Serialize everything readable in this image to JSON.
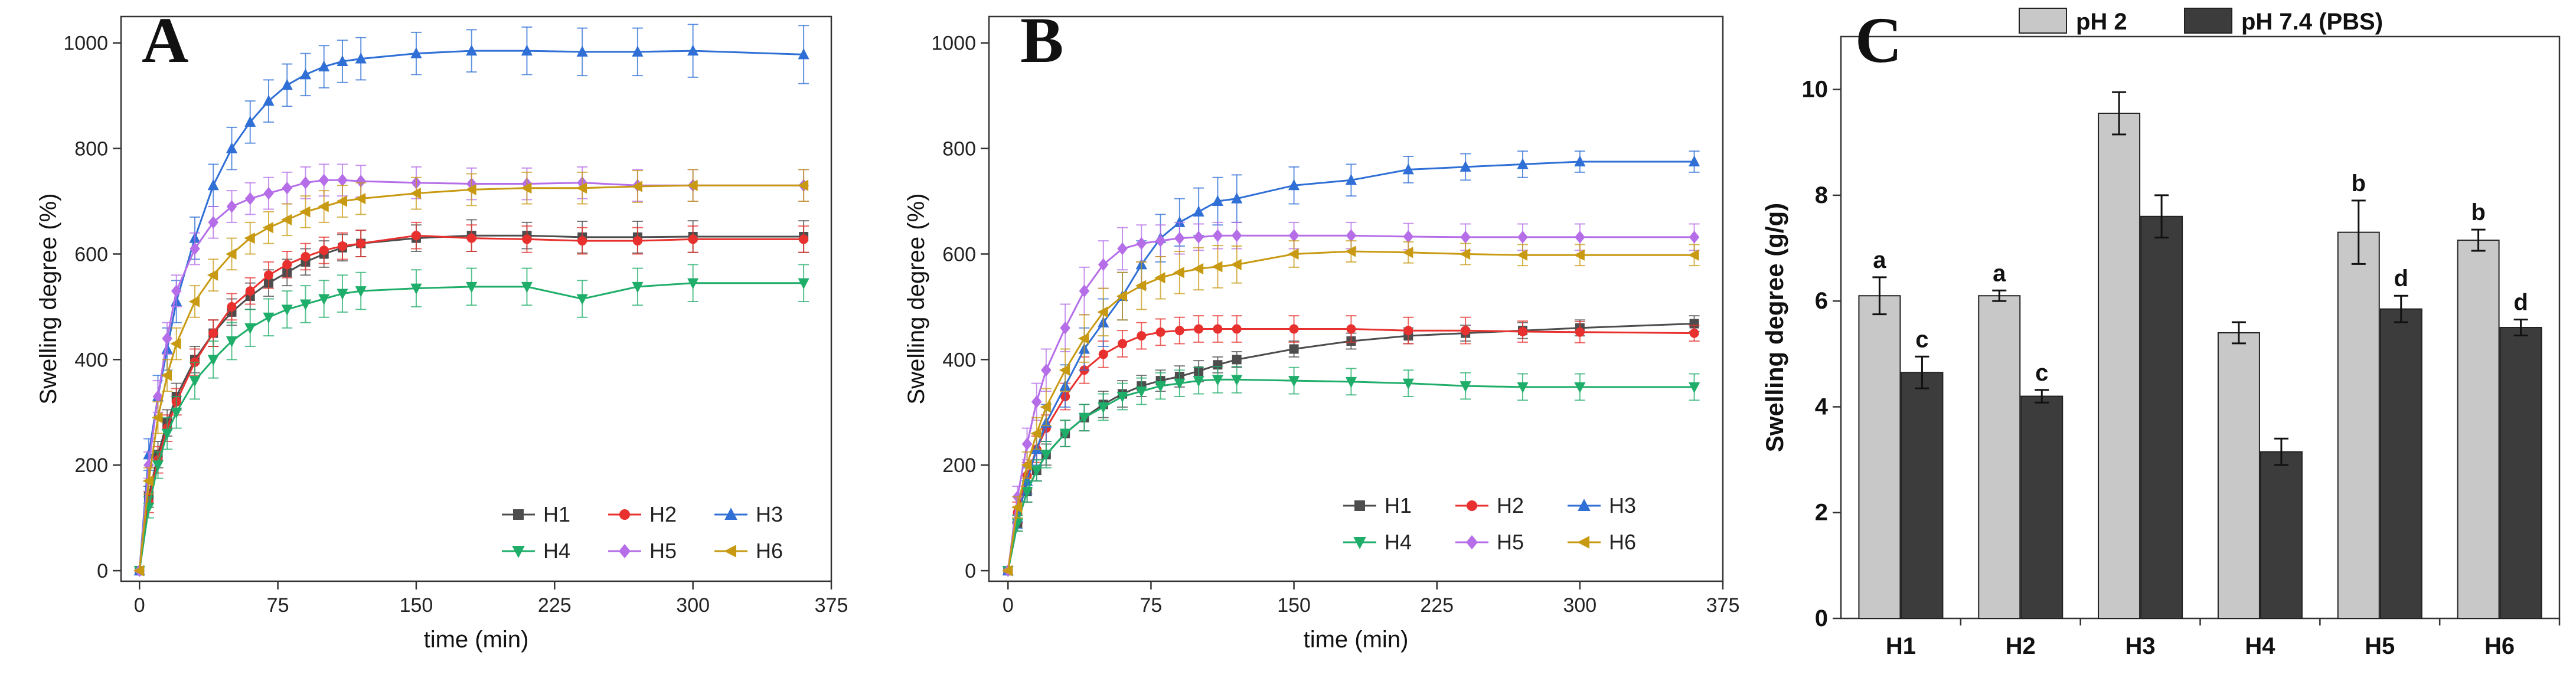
{
  "chart_data": [
    {
      "type": "line",
      "panel": "A",
      "xlabel": "time (min)",
      "ylabel": "Swelling degree (%)",
      "xlim": [
        -10,
        375
      ],
      "ylim": [
        -20,
        1050
      ],
      "xticks": [
        0,
        75,
        150,
        225,
        300,
        375
      ],
      "yticks": [
        0,
        200,
        400,
        600,
        800,
        1000
      ],
      "series": [
        {
          "name": "H1",
          "marker": "square",
          "color": "#4d4d4d",
          "x": [
            0,
            5,
            10,
            15,
            20,
            30,
            40,
            50,
            60,
            70,
            80,
            90,
            100,
            110,
            120,
            150,
            180,
            210,
            240,
            270,
            300,
            360
          ],
          "y": [
            0,
            140,
            220,
            280,
            330,
            400,
            450,
            490,
            520,
            545,
            565,
            585,
            600,
            612,
            620,
            630,
            635,
            635,
            632,
            632,
            633,
            633
          ],
          "err": [
            0,
            20,
            25,
            25,
            25,
            25,
            25,
            25,
            25,
            25,
            25,
            25,
            25,
            25,
            25,
            25,
            30,
            25,
            30,
            30,
            30,
            30
          ]
        },
        {
          "name": "H2",
          "marker": "circle",
          "color": "#e8312e",
          "x": [
            0,
            5,
            10,
            15,
            20,
            30,
            40,
            50,
            60,
            70,
            80,
            90,
            100,
            110,
            120,
            150,
            180,
            210,
            240,
            270,
            300,
            360
          ],
          "y": [
            0,
            130,
            210,
            270,
            320,
            395,
            450,
            500,
            530,
            560,
            580,
            595,
            607,
            615,
            620,
            635,
            630,
            628,
            625,
            625,
            628,
            628
          ],
          "err": [
            0,
            20,
            25,
            25,
            25,
            25,
            25,
            25,
            25,
            25,
            25,
            25,
            25,
            25,
            25,
            25,
            25,
            25,
            25,
            25,
            25,
            25
          ]
        },
        {
          "name": "H3",
          "marker": "triangle-up",
          "color": "#2f6fd6",
          "x": [
            0,
            5,
            10,
            15,
            20,
            30,
            40,
            50,
            60,
            70,
            80,
            90,
            100,
            110,
            120,
            150,
            180,
            210,
            240,
            270,
            300,
            360
          ],
          "y": [
            0,
            220,
            330,
            420,
            510,
            630,
            730,
            800,
            850,
            890,
            920,
            940,
            955,
            965,
            970,
            980,
            985,
            985,
            983,
            983,
            985,
            978
          ],
          "err": [
            0,
            30,
            40,
            40,
            40,
            40,
            40,
            40,
            40,
            40,
            40,
            40,
            40,
            40,
            40,
            40,
            40,
            45,
            45,
            45,
            50,
            55
          ]
        },
        {
          "name": "H4",
          "marker": "triangle-down",
          "color": "#1fae6a",
          "x": [
            0,
            5,
            10,
            15,
            20,
            30,
            40,
            50,
            60,
            70,
            80,
            90,
            100,
            110,
            120,
            150,
            180,
            210,
            240,
            270,
            300,
            360
          ],
          "y": [
            0,
            120,
            200,
            260,
            300,
            360,
            400,
            435,
            460,
            480,
            495,
            505,
            515,
            525,
            530,
            535,
            538,
            538,
            515,
            538,
            545,
            545
          ],
          "err": [
            0,
            20,
            25,
            30,
            30,
            35,
            35,
            35,
            35,
            35,
            35,
            35,
            35,
            35,
            35,
            35,
            35,
            35,
            35,
            35,
            35,
            35
          ]
        },
        {
          "name": "H5",
          "marker": "diamond",
          "color": "#b56ee8",
          "x": [
            0,
            5,
            10,
            15,
            20,
            30,
            40,
            50,
            60,
            70,
            80,
            90,
            100,
            110,
            120,
            150,
            180,
            210,
            240,
            270,
            300,
            360
          ],
          "y": [
            0,
            200,
            330,
            440,
            530,
            610,
            660,
            690,
            705,
            715,
            725,
            735,
            740,
            740,
            738,
            735,
            733,
            733,
            735,
            730,
            730,
            730
          ],
          "err": [
            0,
            25,
            30,
            30,
            30,
            30,
            30,
            30,
            30,
            30,
            30,
            30,
            30,
            30,
            30,
            30,
            30,
            30,
            30,
            30,
            30,
            30
          ]
        },
        {
          "name": "H6",
          "marker": "triangle-left",
          "color": "#c89a12",
          "x": [
            0,
            5,
            10,
            15,
            20,
            30,
            40,
            50,
            60,
            70,
            80,
            90,
            100,
            110,
            120,
            150,
            180,
            210,
            240,
            270,
            300,
            360
          ],
          "y": [
            0,
            170,
            290,
            370,
            430,
            510,
            560,
            600,
            630,
            650,
            665,
            680,
            690,
            700,
            705,
            715,
            722,
            725,
            725,
            728,
            730,
            730
          ],
          "err": [
            0,
            25,
            30,
            30,
            30,
            30,
            30,
            30,
            30,
            30,
            30,
            30,
            30,
            30,
            30,
            30,
            30,
            30,
            30,
            30,
            30,
            30
          ]
        }
      ]
    },
    {
      "type": "line",
      "panel": "B",
      "xlabel": "time (min)",
      "ylabel": "Swelling degree (%)",
      "xlim": [
        -10,
        375
      ],
      "ylim": [
        -20,
        1050
      ],
      "xticks": [
        0,
        75,
        150,
        225,
        300,
        375
      ],
      "yticks": [
        0,
        200,
        400,
        600,
        800,
        1000
      ],
      "series": [
        {
          "name": "H1",
          "marker": "square",
          "color": "#4d4d4d",
          "x": [
            0,
            5,
            10,
            15,
            20,
            30,
            40,
            50,
            60,
            70,
            80,
            90,
            100,
            110,
            120,
            150,
            180,
            210,
            240,
            270,
            300,
            360
          ],
          "y": [
            0,
            90,
            150,
            190,
            220,
            260,
            290,
            315,
            335,
            350,
            360,
            368,
            378,
            390,
            400,
            420,
            435,
            445,
            450,
            455,
            460,
            468
          ],
          "err": [
            0,
            15,
            20,
            20,
            20,
            25,
            25,
            25,
            25,
            20,
            20,
            20,
            20,
            15,
            15,
            15,
            15,
            15,
            15,
            15,
            15,
            15
          ]
        },
        {
          "name": "H2",
          "marker": "circle",
          "color": "#e8312e",
          "x": [
            0,
            5,
            10,
            15,
            20,
            30,
            40,
            50,
            60,
            70,
            80,
            90,
            100,
            110,
            120,
            150,
            180,
            210,
            240,
            270,
            300,
            360
          ],
          "y": [
            0,
            110,
            180,
            230,
            270,
            330,
            380,
            410,
            430,
            445,
            452,
            455,
            458,
            458,
            458,
            458,
            458,
            455,
            455,
            453,
            452,
            450
          ],
          "err": [
            0,
            20,
            25,
            25,
            25,
            25,
            25,
            25,
            25,
            25,
            25,
            25,
            25,
            25,
            25,
            25,
            25,
            25,
            25,
            20,
            20,
            15
          ]
        },
        {
          "name": "H3",
          "marker": "triangle-up",
          "color": "#2f6fd6",
          "x": [
            0,
            5,
            10,
            15,
            20,
            30,
            40,
            50,
            60,
            70,
            80,
            90,
            100,
            110,
            120,
            150,
            180,
            210,
            240,
            270,
            300,
            360
          ],
          "y": [
            0,
            100,
            170,
            230,
            280,
            350,
            420,
            470,
            520,
            580,
            630,
            660,
            680,
            700,
            705,
            730,
            740,
            760,
            765,
            770,
            775,
            775
          ],
          "err": [
            0,
            20,
            25,
            30,
            35,
            40,
            40,
            45,
            45,
            45,
            45,
            45,
            45,
            45,
            45,
            35,
            30,
            25,
            25,
            25,
            20,
            20
          ]
        },
        {
          "name": "H4",
          "marker": "triangle-down",
          "color": "#1fae6a",
          "x": [
            0,
            5,
            10,
            15,
            20,
            30,
            40,
            50,
            60,
            70,
            80,
            90,
            100,
            110,
            120,
            150,
            180,
            210,
            240,
            270,
            300,
            360
          ],
          "y": [
            0,
            90,
            150,
            190,
            220,
            260,
            290,
            310,
            330,
            340,
            350,
            355,
            360,
            362,
            362,
            360,
            358,
            355,
            350,
            348,
            348,
            348
          ],
          "err": [
            0,
            15,
            20,
            20,
            25,
            25,
            25,
            25,
            25,
            25,
            25,
            25,
            25,
            25,
            25,
            25,
            25,
            25,
            25,
            25,
            25,
            25
          ]
        },
        {
          "name": "H5",
          "marker": "diamond",
          "color": "#b56ee8",
          "x": [
            0,
            5,
            10,
            15,
            20,
            30,
            40,
            50,
            60,
            70,
            80,
            90,
            100,
            110,
            120,
            150,
            180,
            210,
            240,
            270,
            300,
            360
          ],
          "y": [
            0,
            140,
            240,
            320,
            380,
            460,
            530,
            580,
            610,
            620,
            625,
            630,
            632,
            635,
            635,
            635,
            635,
            633,
            632,
            632,
            632,
            632
          ],
          "err": [
            0,
            20,
            30,
            35,
            40,
            45,
            45,
            45,
            40,
            35,
            30,
            30,
            25,
            25,
            25,
            25,
            25,
            25,
            25,
            25,
            25,
            25
          ]
        },
        {
          "name": "H6",
          "marker": "triangle-left",
          "color": "#c89a12",
          "x": [
            0,
            5,
            10,
            15,
            20,
            30,
            40,
            50,
            60,
            70,
            80,
            90,
            100,
            110,
            120,
            150,
            180,
            210,
            240,
            270,
            300,
            360
          ],
          "y": [
            0,
            120,
            200,
            260,
            310,
            380,
            440,
            490,
            520,
            540,
            555,
            565,
            572,
            576,
            580,
            600,
            605,
            603,
            600,
            598,
            598,
            598
          ],
          "err": [
            0,
            20,
            25,
            30,
            35,
            40,
            45,
            45,
            45,
            45,
            40,
            40,
            40,
            40,
            35,
            25,
            20,
            20,
            20,
            20,
            20,
            20
          ]
        }
      ]
    },
    {
      "type": "bar",
      "panel": "C",
      "ylabel": "Swelling degree (g/g)",
      "ylim": [
        0,
        11
      ],
      "yticks": [
        0,
        2,
        4,
        6,
        8,
        10
      ],
      "categories": [
        "H1",
        "H2",
        "H3",
        "H4",
        "H5",
        "H6"
      ],
      "series": [
        {
          "name": "pH 2",
          "color": "#c8c8c8",
          "values": [
            6.1,
            6.1,
            9.55,
            5.4,
            7.3,
            7.15
          ],
          "err": [
            0.35,
            0.1,
            0.4,
            0.2,
            0.6,
            0.2
          ],
          "labels": [
            "a",
            "a",
            "",
            "",
            "b",
            "b"
          ]
        },
        {
          "name": "pH 7.4 (PBS)",
          "color": "#3c3c3c",
          "values": [
            4.65,
            4.2,
            7.6,
            3.15,
            5.85,
            5.5
          ],
          "err": [
            0.3,
            0.12,
            0.4,
            0.25,
            0.25,
            0.15
          ],
          "labels": [
            "c",
            "c",
            "",
            "",
            "d",
            "d"
          ]
        }
      ]
    }
  ]
}
